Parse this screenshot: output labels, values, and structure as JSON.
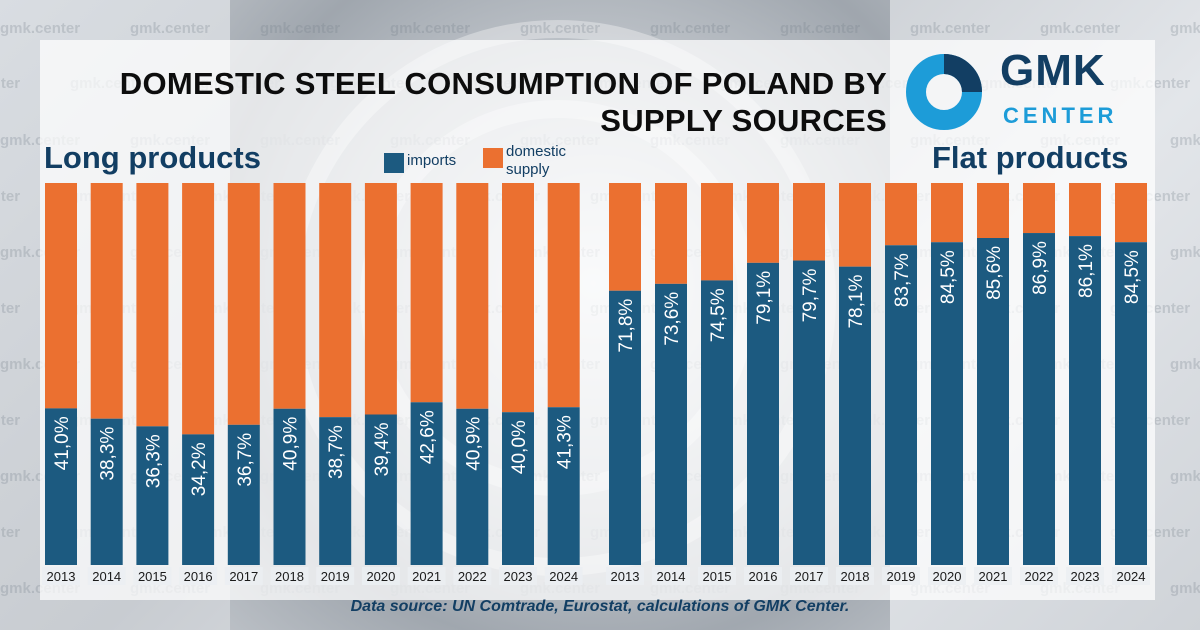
{
  "title_line1": "DOMESTIC STEEL CONSUMPTION OF POLAND BY",
  "title_line2": "SUPPLY SOURCES",
  "logo": {
    "line1": "GMK",
    "line2": "CENTER"
  },
  "watermark_text": "gmk.center",
  "legend": {
    "imports": "imports",
    "domestic_line1": "domestic",
    "domestic_line2": "supply"
  },
  "colors": {
    "imports": "#1c5a80",
    "domestic": "#eb7030",
    "title": "#123e63"
  },
  "source": "Data source: UN Comtrade, Eurostat, calculations of GMK Center.",
  "chart_data": [
    {
      "type": "bar",
      "stacked": true,
      "title": "Long products",
      "categories": [
        "2013",
        "2014",
        "2015",
        "2016",
        "2017",
        "2018",
        "2019",
        "2020",
        "2021",
        "2022",
        "2023",
        "2024"
      ],
      "series": [
        {
          "name": "imports",
          "values": [
            41.0,
            38.3,
            36.3,
            34.2,
            36.7,
            40.9,
            38.7,
            39.4,
            42.6,
            40.9,
            40.0,
            41.3
          ]
        },
        {
          "name": "domestic supply",
          "values": [
            59.0,
            61.7,
            63.7,
            65.8,
            63.3,
            59.1,
            61.3,
            60.6,
            57.4,
            59.1,
            60.0,
            58.7
          ]
        }
      ],
      "labels": [
        "41,0%",
        "38,3%",
        "36,3%",
        "34,2%",
        "36,7%",
        "40,9%",
        "38,7%",
        "39,4%",
        "42,6%",
        "40,9%",
        "40,0%",
        "41,3%"
      ],
      "ylim": [
        0,
        100
      ]
    },
    {
      "type": "bar",
      "stacked": true,
      "title": "Flat products",
      "categories": [
        "2013",
        "2014",
        "2015",
        "2016",
        "2017",
        "2018",
        "2019",
        "2020",
        "2021",
        "2022",
        "2023",
        "2024"
      ],
      "series": [
        {
          "name": "imports",
          "values": [
            71.8,
            73.6,
            74.5,
            79.1,
            79.7,
            78.1,
            83.7,
            84.5,
            85.6,
            86.9,
            86.1,
            84.5
          ]
        },
        {
          "name": "domestic supply",
          "values": [
            28.2,
            26.4,
            25.5,
            20.9,
            20.3,
            21.9,
            16.3,
            15.5,
            14.4,
            13.1,
            13.9,
            15.5
          ]
        }
      ],
      "labels": [
        "71,8%",
        "73,6%",
        "74,5%",
        "79,1%",
        "79,7%",
        "78,1%",
        "83,7%",
        "84,5%",
        "85,6%",
        "86,9%",
        "86,1%",
        "84,5%"
      ],
      "ylim": [
        0,
        100
      ]
    }
  ]
}
